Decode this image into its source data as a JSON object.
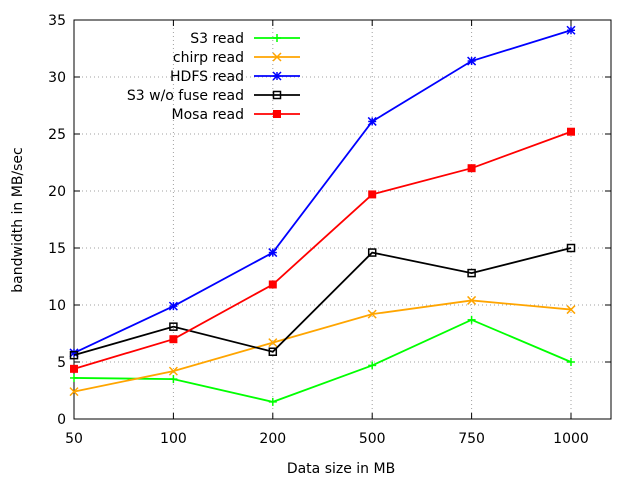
{
  "chart_data": {
    "type": "line",
    "categories": [
      "50",
      "100",
      "200",
      "500",
      "750",
      "1000"
    ],
    "xlabel": "Data size in MB",
    "ylabel": "bandwidth in MB/sec",
    "ylim": [
      0,
      35
    ],
    "yticks": [
      "0",
      "5",
      "10",
      "15",
      "20",
      "25",
      "30",
      "35"
    ],
    "grid": true,
    "legend_position": "top-left",
    "series": [
      {
        "name": "S3 read",
        "color": "#00ff00",
        "marker": "plus",
        "values": [
          3.6,
          3.5,
          1.5,
          4.7,
          8.7,
          5.0
        ]
      },
      {
        "name": "chirp read",
        "color": "#ffa500",
        "marker": "cross",
        "values": [
          2.4,
          4.2,
          6.7,
          9.2,
          10.4,
          9.6
        ]
      },
      {
        "name": "HDFS read",
        "color": "#0000ff",
        "marker": "star",
        "values": [
          5.8,
          9.9,
          14.6,
          26.1,
          31.4,
          34.1
        ]
      },
      {
        "name": "S3 w/o fuse read",
        "color": "#000000",
        "marker": "open-square",
        "values": [
          5.6,
          8.1,
          5.9,
          14.6,
          12.8,
          15.0
        ]
      },
      {
        "name": "Mosa read",
        "color": "#ff0000",
        "marker": "filled-square",
        "values": [
          4.4,
          7.0,
          11.8,
          19.7,
          22.0,
          25.2
        ]
      }
    ]
  }
}
